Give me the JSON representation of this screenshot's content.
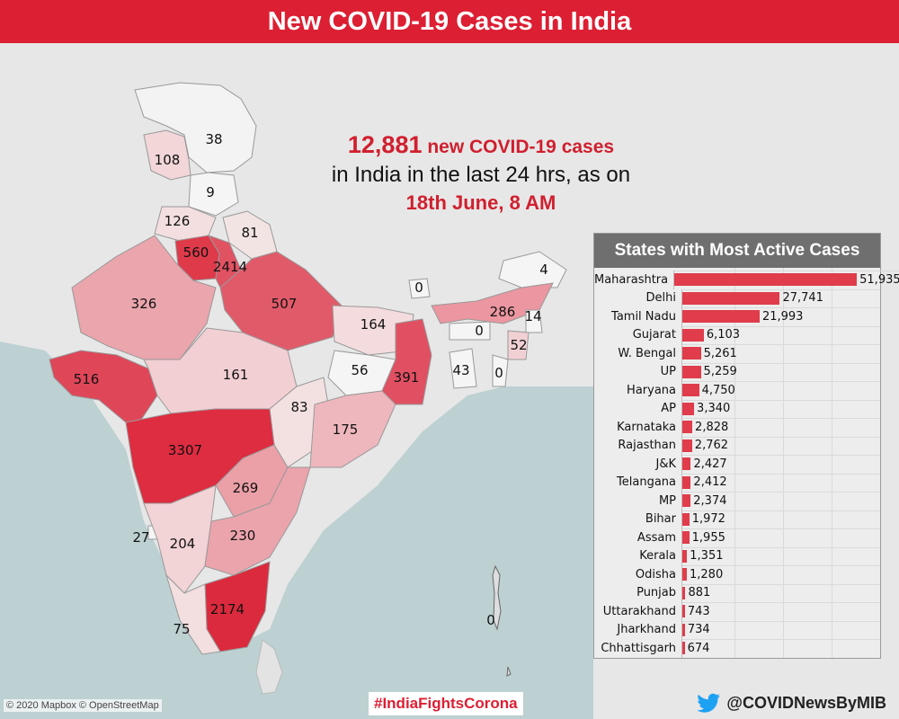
{
  "header": {
    "title": "New COVID-19 Cases in India"
  },
  "headline": {
    "count": "12,881",
    "count_suffix": " new COVID-19 cases",
    "line2": "in India in the last 24 hrs, as on",
    "line3": "18th June, 8 AM"
  },
  "map": {
    "labels": [
      {
        "id": "ladakh-jk",
        "value": "38"
      },
      {
        "id": "jk",
        "value": "108"
      },
      {
        "id": "hp",
        "value": "9"
      },
      {
        "id": "punjab",
        "value": "126"
      },
      {
        "id": "uttarakhand",
        "value": "81"
      },
      {
        "id": "haryana",
        "value": "560"
      },
      {
        "id": "delhi",
        "value": "2414"
      },
      {
        "id": "rajasthan",
        "value": "326"
      },
      {
        "id": "up",
        "value": "507"
      },
      {
        "id": "bihar",
        "value": "164"
      },
      {
        "id": "sikkim",
        "value": "0"
      },
      {
        "id": "arunachal",
        "value": "4"
      },
      {
        "id": "assam",
        "value": "286"
      },
      {
        "id": "nagaland",
        "value": "14"
      },
      {
        "id": "meghalaya",
        "value": "0"
      },
      {
        "id": "manipur",
        "value": "52"
      },
      {
        "id": "tripura",
        "value": "43"
      },
      {
        "id": "mizoram",
        "value": "0"
      },
      {
        "id": "gujarat",
        "value": "516"
      },
      {
        "id": "mp",
        "value": "161"
      },
      {
        "id": "jharkhand",
        "value": "56"
      },
      {
        "id": "wb",
        "value": "391"
      },
      {
        "id": "chhattisgarh",
        "value": "83"
      },
      {
        "id": "odisha",
        "value": "175"
      },
      {
        "id": "maharashtra",
        "value": "3307"
      },
      {
        "id": "telangana",
        "value": "269"
      },
      {
        "id": "goa",
        "value": "27"
      },
      {
        "id": "karnataka",
        "value": "204"
      },
      {
        "id": "ap",
        "value": "230"
      },
      {
        "id": "tamilnadu",
        "value": "2174"
      },
      {
        "id": "kerala",
        "value": "75"
      },
      {
        "id": "andaman",
        "value": "0"
      }
    ]
  },
  "panel": {
    "title": "States with Most Active Cases",
    "max": 55000,
    "rows": [
      {
        "state": "Maharashtra",
        "label": "51,935",
        "value": 51935
      },
      {
        "state": "Delhi",
        "label": "27,741",
        "value": 27741
      },
      {
        "state": "Tamil Nadu",
        "label": "21,993",
        "value": 21993
      },
      {
        "state": "Gujarat",
        "label": "6,103",
        "value": 6103
      },
      {
        "state": "W. Bengal",
        "label": "5,261",
        "value": 5261
      },
      {
        "state": "UP",
        "label": "5,259",
        "value": 5259
      },
      {
        "state": "Haryana",
        "label": "4,750",
        "value": 4750
      },
      {
        "state": "AP",
        "label": "3,340",
        "value": 3340
      },
      {
        "state": "Karnataka",
        "label": "2,828",
        "value": 2828
      },
      {
        "state": "Rajasthan",
        "label": "2,762",
        "value": 2762
      },
      {
        "state": "J&K",
        "label": "2,427",
        "value": 2427
      },
      {
        "state": "Telangana",
        "label": "2,412",
        "value": 2412
      },
      {
        "state": "MP",
        "label": "2,374",
        "value": 2374
      },
      {
        "state": "Bihar",
        "label": "1,972",
        "value": 1972
      },
      {
        "state": "Assam",
        "label": "1,955",
        "value": 1955
      },
      {
        "state": "Kerala",
        "label": "1,351",
        "value": 1351
      },
      {
        "state": "Odisha",
        "label": "1,280",
        "value": 1280
      },
      {
        "state": "Punjab",
        "label": "881",
        "value": 881
      },
      {
        "state": "Uttarakhand",
        "label": "743",
        "value": 743
      },
      {
        "state": "Jharkhand",
        "label": "734",
        "value": 734
      },
      {
        "state": "Chhattisgarh",
        "label": "674",
        "value": 674
      }
    ]
  },
  "footer": {
    "attribution": "© 2020 Mapbox © OpenStreetMap",
    "hashtag": "#IndiaFightsCorona",
    "handle": "@COVIDNewsByMIB",
    "handle_icon": "twitter-bird-icon"
  },
  "colors": {
    "brand_red": "#dc1f33",
    "bar": "#e03c4b",
    "sea": "#bdd0d2",
    "land": "#e7e7e7"
  }
}
